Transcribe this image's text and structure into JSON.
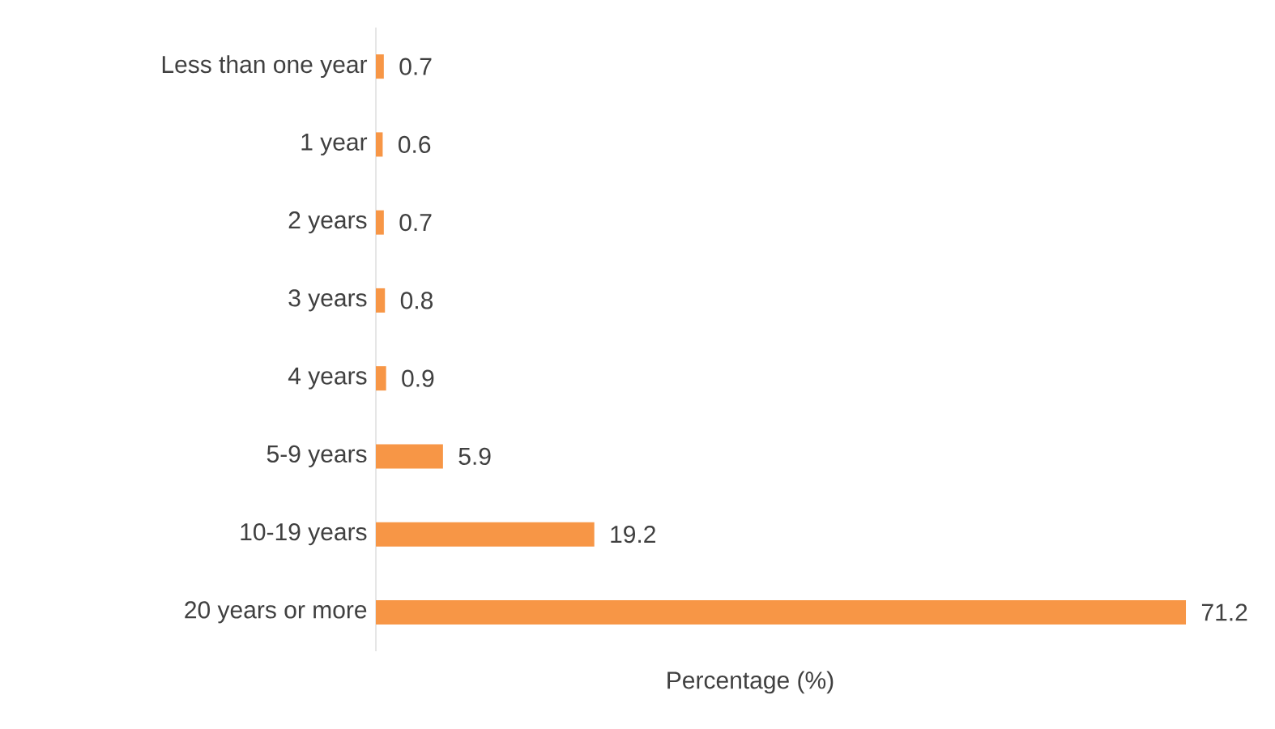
{
  "chart_data": {
    "type": "bar",
    "orientation": "horizontal",
    "categories": [
      "Less than one year",
      "1 year",
      "2 years",
      "3 years",
      "4 years",
      "5-9 years",
      "10-19 years",
      "20 years or more"
    ],
    "values": [
      0.7,
      0.6,
      0.7,
      0.8,
      0.9,
      5.9,
      19.2,
      71.2
    ],
    "color": "#f79646",
    "xlabel": "Percentage (%)",
    "data_labels": true,
    "grid": false
  }
}
